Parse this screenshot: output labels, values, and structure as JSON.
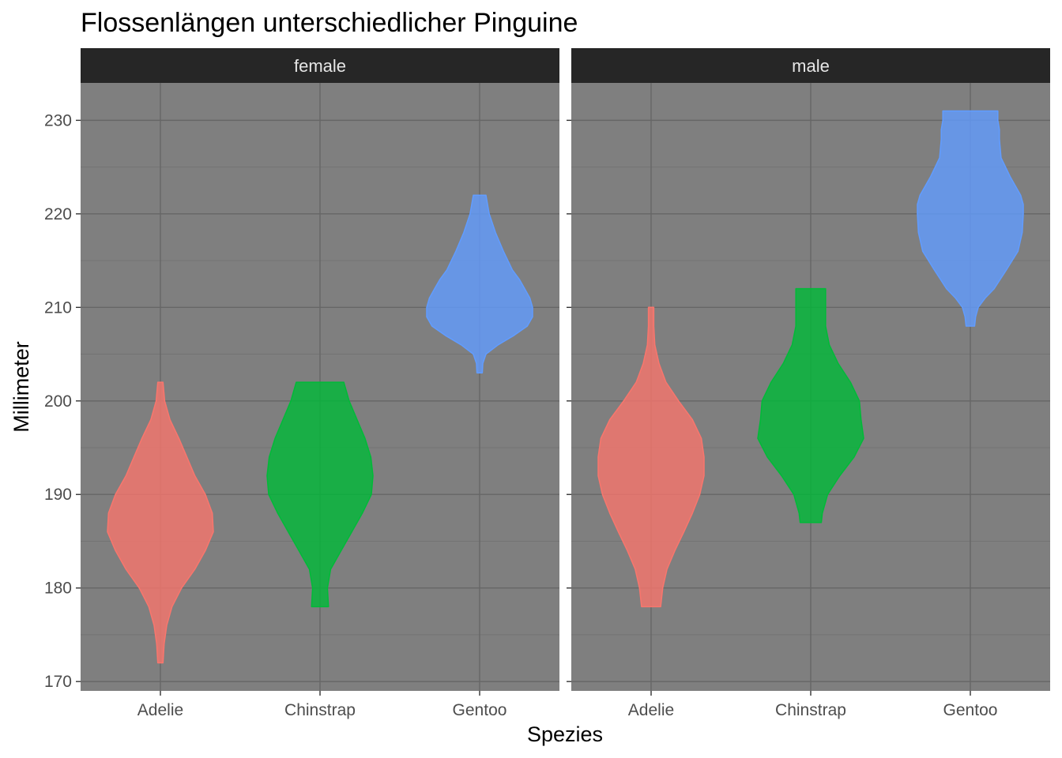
{
  "chart_data": {
    "type": "violin",
    "title": "Flossenlängen unterschiedlicher Pinguine",
    "xlabel": "Spezies",
    "ylabel": "Millimeter",
    "ylim": [
      169,
      234
    ],
    "y_ticks": [
      170,
      180,
      190,
      200,
      210,
      220,
      230
    ],
    "categories": [
      "Adelie",
      "Chinstrap",
      "Gentoo"
    ],
    "colors": {
      "Adelie": "#F8766D",
      "Chinstrap": "#00BA38",
      "Gentoo": "#619CFF"
    },
    "grid": true,
    "panels": [
      {
        "name": "female",
        "violins": [
          {
            "species": "Adelie",
            "min": 172,
            "max": 202,
            "profile": [
              [
                172,
                0.05
              ],
              [
                174,
                0.07
              ],
              [
                176,
                0.12
              ],
              [
                178,
                0.22
              ],
              [
                180,
                0.4
              ],
              [
                182,
                0.65
              ],
              [
                184,
                0.85
              ],
              [
                186,
                1.0
              ],
              [
                188,
                0.98
              ],
              [
                190,
                0.85
              ],
              [
                192,
                0.65
              ],
              [
                194,
                0.5
              ],
              [
                196,
                0.35
              ],
              [
                198,
                0.18
              ],
              [
                200,
                0.08
              ],
              [
                202,
                0.05
              ]
            ]
          },
          {
            "species": "Chinstrap",
            "min": 178,
            "max": 202,
            "profile": [
              [
                178,
                0.16
              ],
              [
                180,
                0.14
              ],
              [
                182,
                0.2
              ],
              [
                184,
                0.4
              ],
              [
                186,
                0.6
              ],
              [
                188,
                0.8
              ],
              [
                190,
                0.97
              ],
              [
                192,
                1.0
              ],
              [
                194,
                0.96
              ],
              [
                196,
                0.85
              ],
              [
                198,
                0.7
              ],
              [
                200,
                0.55
              ],
              [
                202,
                0.45
              ]
            ]
          },
          {
            "species": "Gentoo",
            "min": 203,
            "max": 222,
            "profile": [
              [
                203,
                0.05
              ],
              [
                204,
                0.06
              ],
              [
                205,
                0.12
              ],
              [
                206,
                0.35
              ],
              [
                207,
                0.65
              ],
              [
                208,
                0.9
              ],
              [
                209,
                1.0
              ],
              [
                210,
                1.0
              ],
              [
                211,
                0.95
              ],
              [
                212,
                0.85
              ],
              [
                213,
                0.75
              ],
              [
                214,
                0.62
              ],
              [
                216,
                0.45
              ],
              [
                218,
                0.3
              ],
              [
                220,
                0.18
              ],
              [
                222,
                0.12
              ]
            ]
          }
        ]
      },
      {
        "name": "male",
        "violins": [
          {
            "species": "Adelie",
            "min": 178,
            "max": 210,
            "profile": [
              [
                178,
                0.18
              ],
              [
                180,
                0.22
              ],
              [
                182,
                0.3
              ],
              [
                184,
                0.45
              ],
              [
                186,
                0.62
              ],
              [
                188,
                0.78
              ],
              [
                190,
                0.92
              ],
              [
                192,
                1.0
              ],
              [
                194,
                1.0
              ],
              [
                196,
                0.95
              ],
              [
                198,
                0.78
              ],
              [
                200,
                0.52
              ],
              [
                202,
                0.28
              ],
              [
                204,
                0.15
              ],
              [
                206,
                0.07
              ],
              [
                208,
                0.05
              ],
              [
                210,
                0.05
              ]
            ]
          },
          {
            "species": "Chinstrap",
            "min": 187,
            "max": 212,
            "profile": [
              [
                187,
                0.2
              ],
              [
                188,
                0.22
              ],
              [
                190,
                0.32
              ],
              [
                192,
                0.55
              ],
              [
                194,
                0.82
              ],
              [
                196,
                1.0
              ],
              [
                198,
                0.95
              ],
              [
                200,
                0.92
              ],
              [
                202,
                0.75
              ],
              [
                204,
                0.52
              ],
              [
                206,
                0.35
              ],
              [
                208,
                0.28
              ],
              [
                210,
                0.28
              ],
              [
                212,
                0.28
              ]
            ]
          },
          {
            "species": "Gentoo",
            "min": 208,
            "max": 231,
            "profile": [
              [
                208,
                0.08
              ],
              [
                209,
                0.1
              ],
              [
                210,
                0.15
              ],
              [
                211,
                0.28
              ],
              [
                212,
                0.45
              ],
              [
                214,
                0.68
              ],
              [
                216,
                0.9
              ],
              [
                218,
                0.98
              ],
              [
                220,
                1.0
              ],
              [
                221,
                1.0
              ],
              [
                222,
                0.95
              ],
              [
                224,
                0.75
              ],
              [
                226,
                0.58
              ],
              [
                228,
                0.55
              ],
              [
                229,
                0.55
              ],
              [
                230,
                0.52
              ],
              [
                231,
                0.52
              ]
            ]
          }
        ]
      }
    ]
  },
  "style": {
    "panel_bg": "#7F7F7F",
    "grid_major": "#666666",
    "grid_minor": "#737373",
    "strip_bg": "#262626",
    "fill_opacity": 0.8
  }
}
